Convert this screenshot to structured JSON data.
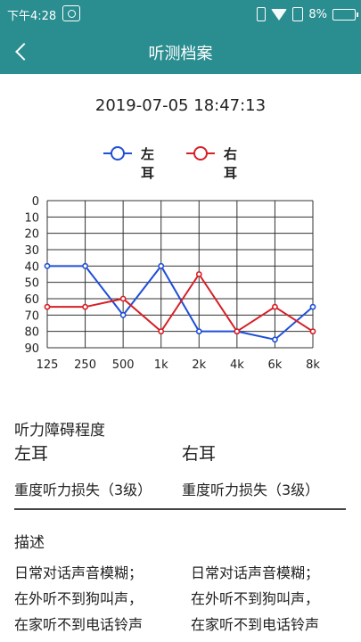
{
  "status_bar": {
    "time": "下午4:28",
    "battery": "8%",
    "icons": [
      "screenshot-icon",
      "vibrate-icon",
      "wifi-icon",
      "sim-icon",
      "battery-icon"
    ]
  },
  "header": {
    "title": "听测档案",
    "back_icon": "chevron-left-icon",
    "color": "#2a8d90"
  },
  "record": {
    "datetime": "2019-07-05 18:47:13"
  },
  "legend": {
    "left_label": "左耳",
    "right_label": "右耳"
  },
  "chart_data": {
    "type": "line",
    "categories": [
      "125",
      "250",
      "500",
      "1k",
      "2k",
      "4k",
      "6k",
      "8k"
    ],
    "y_ticks": [
      "0",
      "10",
      "20",
      "30",
      "40",
      "50",
      "60",
      "70",
      "80",
      "90"
    ],
    "ylim": [
      0,
      90
    ],
    "y_inverted": true,
    "grid": true,
    "legend_position": "top-center",
    "series": [
      {
        "name": "左耳",
        "color": "#1f4fd6",
        "values": [
          40,
          40,
          70,
          40,
          80,
          80,
          85,
          65
        ]
      },
      {
        "name": "右耳",
        "color": "#d61f26",
        "values": [
          65,
          65,
          60,
          80,
          45,
          80,
          65,
          80
        ]
      }
    ]
  },
  "summary": {
    "title": "听力障碍程度",
    "left_ear_label": "左耳",
    "right_ear_label": "右耳",
    "left_ear_value": "重度听力损失（3级）",
    "right_ear_value": "重度听力损失（3级）"
  },
  "description": {
    "title": "描述",
    "left_lines": [
      "日常对话声音模糊；",
      "在外听不到狗叫声，",
      "在家听不到电话铃声"
    ],
    "right_lines": [
      "日常对话声音模糊；",
      "在外听不到狗叫声，",
      "在家听不到电话铃声"
    ]
  }
}
